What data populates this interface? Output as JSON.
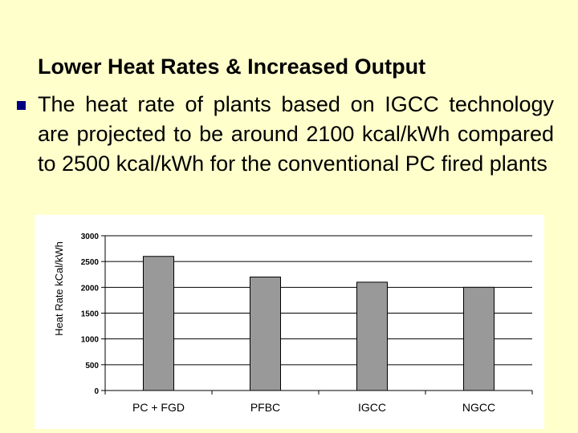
{
  "slide": {
    "heading": "Lower Heat Rates & Increased Output",
    "bullet": "The heat rate of plants based on IGCC technology are projected to be around 2100 kcal/kWh compared to 2500 kcal/kWh for the conventional PC fired plants"
  },
  "chart_data": {
    "type": "bar",
    "title": "",
    "xlabel": "",
    "ylabel": "Heat Rate kCal/kWh",
    "categories": [
      "PC + FGD",
      "PFBC",
      "IGCC",
      "NGCC"
    ],
    "values": [
      2600,
      2200,
      2100,
      2000
    ],
    "ylim": [
      0,
      3000
    ],
    "yticks": [
      "0",
      "500",
      "1000",
      "1500",
      "2000",
      "2500",
      "3000"
    ],
    "grid": true,
    "legend": "none",
    "bar_color": "#999999"
  }
}
